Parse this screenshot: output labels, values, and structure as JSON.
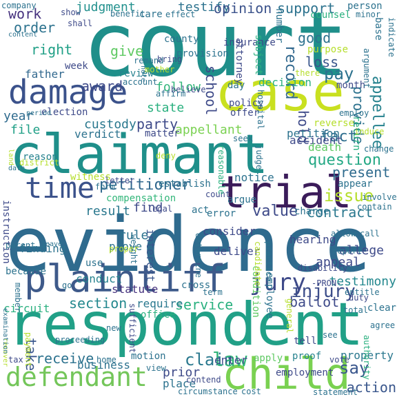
{
  "words": [
    {
      "text": "court",
      "color": "#1f8f8a"
    },
    {
      "text": "evidence",
      "color": "#2f6b8e"
    },
    {
      "text": "respondent",
      "color": "#21a087"
    },
    {
      "text": "claimant",
      "color": "#1f8f8a"
    },
    {
      "text": "case",
      "color": "#c9e020"
    },
    {
      "text": "plaintiff",
      "color": "#3e5a8a"
    },
    {
      "text": "damage",
      "color": "#3b528b"
    },
    {
      "text": "child",
      "color": "#7ad151"
    },
    {
      "text": "trial",
      "color": "#3b1c5a"
    },
    {
      "text": "defendant",
      "color": "#74c65a"
    },
    {
      "text": "time",
      "color": "#3b528b"
    },
    {
      "text": "jury",
      "color": "#3e4a89"
    },
    {
      "text": "injury",
      "color": "#3d4e8a"
    },
    {
      "text": "petitioner",
      "color": "#31688e"
    },
    {
      "text": "custody",
      "color": "#2a788e"
    },
    {
      "text": "record",
      "color": "#31688e"
    },
    {
      "text": "school",
      "color": "#3e4a89"
    },
    {
      "text": "appellee",
      "color": "#26828e"
    },
    {
      "text": "fact",
      "color": "#2e6e8e"
    },
    {
      "text": "question",
      "color": "#23a884"
    },
    {
      "text": "claim",
      "color": "#2a788e"
    },
    {
      "text": "say",
      "color": "#39568c"
    },
    {
      "text": "law",
      "color": "#32b67a"
    },
    {
      "text": "award",
      "color": "#3e4a89"
    },
    {
      "text": "right",
      "color": "#21a087"
    },
    {
      "text": "order",
      "color": "#2c728e"
    },
    {
      "text": "work",
      "color": "#46327e"
    },
    {
      "text": "judgment",
      "color": "#21908d"
    },
    {
      "text": "testify",
      "color": "#2c728e"
    },
    {
      "text": "opinion",
      "color": "#3b528b"
    },
    {
      "text": "support",
      "color": "#2c728e"
    },
    {
      "text": "give",
      "color": "#5ec962"
    },
    {
      "text": "father",
      "color": "#31688e"
    },
    {
      "text": "state",
      "color": "#2ab07f"
    },
    {
      "text": "party",
      "color": "#3e4a89"
    },
    {
      "text": "year",
      "color": "#2f6b8e"
    },
    {
      "text": "file",
      "color": "#21a087"
    },
    {
      "text": "pay",
      "color": "#2c728e"
    },
    {
      "text": "good",
      "color": "#2c728e"
    },
    {
      "text": "loss",
      "color": "#39568c"
    },
    {
      "text": "decision",
      "color": "#2ab07f"
    },
    {
      "text": "provide",
      "color": "#2c728e"
    },
    {
      "text": "hold",
      "color": "#3e4a89"
    },
    {
      "text": "present",
      "color": "#2f6b8e"
    },
    {
      "text": "issue",
      "color": "#b5de2b"
    },
    {
      "text": "contract",
      "color": "#2a788e"
    },
    {
      "text": "value",
      "color": "#3e4a89"
    },
    {
      "text": "result",
      "color": "#2a788e"
    },
    {
      "text": "find",
      "color": "#3e4a89"
    },
    {
      "text": "section",
      "color": "#23888e"
    },
    {
      "text": "service",
      "color": "#2ab07f"
    },
    {
      "text": "ballot",
      "color": "#3e4a89"
    },
    {
      "text": "testimony",
      "color": "#23888e"
    },
    {
      "text": "receive",
      "color": "#2c728e"
    },
    {
      "text": "take",
      "color": "#39568c"
    },
    {
      "text": "action",
      "color": "#39568c"
    },
    {
      "text": "property",
      "color": "#2a788e"
    },
    {
      "text": "appellant",
      "color": "#7ad151"
    },
    {
      "text": "follow",
      "color": "#32b67a"
    },
    {
      "text": "review",
      "color": "#26828e"
    },
    {
      "text": "rule",
      "color": "#2c728e"
    },
    {
      "text": "prove",
      "color": "#2c728e"
    },
    {
      "text": "interest",
      "color": "#39568c"
    },
    {
      "text": "statute",
      "color": "#46327e"
    },
    {
      "text": "appeal",
      "color": "#3e4a89"
    },
    {
      "text": "allege",
      "color": "#3e4a89"
    },
    {
      "text": "conduct",
      "color": "#26828e"
    },
    {
      "text": "instruction",
      "color": "#3e4a89"
    },
    {
      "text": "finding",
      "color": "#2c728e"
    },
    {
      "text": "consider",
      "color": "#3e4a89"
    },
    {
      "text": "notice",
      "color": "#2c728e"
    },
    {
      "text": "deliver",
      "color": "#3e4a89"
    },
    {
      "text": "employee",
      "color": "#2c728e"
    },
    {
      "text": "condition",
      "color": "#5ec962"
    },
    {
      "text": "error",
      "color": "#2c728e"
    },
    {
      "text": "charge",
      "color": "#2c728e"
    },
    {
      "text": "witness",
      "color": "#b5de2b"
    },
    {
      "text": "compensation",
      "color": "#32b67a"
    },
    {
      "text": "verdict",
      "color": "#2c728e"
    },
    {
      "text": "matter",
      "color": "#3e4a89"
    },
    {
      "text": "election",
      "color": "#3e4a89"
    },
    {
      "text": "accident",
      "color": "#3e4a89"
    },
    {
      "text": "petition",
      "color": "#2c728e"
    },
    {
      "text": "death",
      "color": "#5ec962"
    },
    {
      "text": "argue",
      "color": "#2c728e"
    },
    {
      "text": "reason",
      "color": "#26828e"
    },
    {
      "text": "hearing",
      "color": "#3e4a89"
    },
    {
      "text": "require",
      "color": "#2a788e"
    },
    {
      "text": "office",
      "color": "#2ab07f"
    },
    {
      "text": "motion",
      "color": "#2c728e"
    },
    {
      "text": "business",
      "color": "#2c728e"
    },
    {
      "text": "prior",
      "color": "#3e4a89"
    },
    {
      "text": "place",
      "color": "#2c728e"
    },
    {
      "text": "enter",
      "color": "#3e4a89"
    },
    {
      "text": "apply",
      "color": "#5ec962"
    },
    {
      "text": "proof",
      "color": "#26828e"
    },
    {
      "text": "circuit",
      "color": "#2ab07f"
    },
    {
      "text": "because",
      "color": "#2c728e"
    },
    {
      "text": "use",
      "color": "#2c728e"
    },
    {
      "text": "cross",
      "color": "#2c728e"
    },
    {
      "text": "week",
      "color": "#3e4a89"
    },
    {
      "text": "mother",
      "color": "#b5de2b"
    },
    {
      "text": "county",
      "color": "#2c728e"
    },
    {
      "text": "provision",
      "color": "#2c728e"
    },
    {
      "text": "insurance",
      "color": "#3e4a89"
    },
    {
      "text": "attorney",
      "color": "#3e4a89"
    },
    {
      "text": "subject",
      "color": "#2ab07f"
    },
    {
      "text": "counsel",
      "color": "#2ab07f"
    },
    {
      "text": "purpose",
      "color": "#b5de2b"
    },
    {
      "text": "reverse",
      "color": "#b5de2b"
    },
    {
      "text": "return",
      "color": "#2ab07f"
    },
    {
      "text": "month",
      "color": "#3e4a89"
    },
    {
      "text": "policy",
      "color": "#3e4a89"
    },
    {
      "text": "offer",
      "color": "#3e4a89"
    },
    {
      "text": "day",
      "color": "#2c728e"
    },
    {
      "text": "believe",
      "color": "#3e4a89"
    },
    {
      "text": "affirm",
      "color": "#2c728e"
    },
    {
      "text": "seek",
      "color": "#2c728e"
    },
    {
      "text": "establish",
      "color": "#2c728e"
    },
    {
      "text": "letter",
      "color": "#3e4a89"
    },
    {
      "text": "deny",
      "color": "#b5de2b"
    },
    {
      "text": "form",
      "color": "#2c728e"
    },
    {
      "text": "legal",
      "color": "#3e4a89"
    },
    {
      "text": "count",
      "color": "#3e4a89"
    },
    {
      "text": "act",
      "color": "#2c728e"
    },
    {
      "text": "reasonable",
      "color": "#2ab07f"
    },
    {
      "text": "judge",
      "color": "#2c728e"
    },
    {
      "text": "appear",
      "color": "#2c728e"
    },
    {
      "text": "involve",
      "color": "#2c728e"
    },
    {
      "text": "contain",
      "color": "#2c728e"
    },
    {
      "text": "change",
      "color": "#2c728e"
    },
    {
      "text": "induce",
      "color": "#b5de2b"
    },
    {
      "text": "employ",
      "color": "#2c728e"
    },
    {
      "text": "practice",
      "color": "#2c728e"
    },
    {
      "text": "candidate",
      "color": "#b5de2b"
    },
    {
      "text": "allow",
      "color": "#2c728e"
    },
    {
      "text": "call",
      "color": "#2c728e"
    },
    {
      "text": "report",
      "color": "#2c728e"
    },
    {
      "text": "disability",
      "color": "#3e4a89"
    },
    {
      "text": "-PRON-",
      "color": "#3e4a89"
    },
    {
      "text": "entitle",
      "color": "#2c728e"
    },
    {
      "text": "duty",
      "color": "#3e4a89"
    },
    {
      "text": "clear",
      "color": "#2c728e"
    },
    {
      "text": "agree",
      "color": "#2c728e"
    },
    {
      "text": "total",
      "color": "#2c728e"
    },
    {
      "text": "general",
      "color": "#b5de2b"
    },
    {
      "text": "term",
      "color": "#2c728e"
    },
    {
      "text": "see",
      "color": "#2c728e"
    },
    {
      "text": "tell",
      "color": "#3e4a89"
    },
    {
      "text": "vote",
      "color": "#3e4a89"
    },
    {
      "text": "authority",
      "color": "#2ab07f"
    },
    {
      "text": "employment",
      "color": "#3e4a89"
    },
    {
      "text": "cost",
      "color": "#2c728e"
    },
    {
      "text": "circumstance",
      "color": "#2c728e"
    },
    {
      "text": "statement",
      "color": "#2c728e"
    },
    {
      "text": "contend",
      "color": "#3e4a89"
    },
    {
      "text": "view",
      "color": "#2c728e"
    },
    {
      "text": "sufficient",
      "color": "#3e4a89"
    },
    {
      "text": "home",
      "color": "#2c728e"
    },
    {
      "text": "proceeding",
      "color": "#2c728e"
    },
    {
      "text": "new",
      "color": "#2c728e"
    },
    {
      "text": "payment",
      "color": "#b5de2b"
    },
    {
      "text": "tax",
      "color": "#3e4a89"
    },
    {
      "text": "recover",
      "color": "#b5de2b"
    },
    {
      "text": "examination",
      "color": "#2c728e"
    },
    {
      "text": "member",
      "color": "#2c728e"
    },
    {
      "text": "go",
      "color": "#2c728e"
    },
    {
      "text": "parent",
      "color": "#2c728e"
    },
    {
      "text": "leave",
      "color": "#2c728e"
    },
    {
      "text": "remand",
      "color": "#2c728e"
    },
    {
      "text": "bring",
      "color": "#3e4a89"
    },
    {
      "text": "note",
      "color": "#2c728e"
    },
    {
      "text": "account",
      "color": "#2c728e"
    },
    {
      "text": "period",
      "color": "#2c728e"
    },
    {
      "text": "land",
      "color": "#b5de2b"
    },
    {
      "text": "date",
      "color": "#2c728e"
    },
    {
      "text": "district",
      "color": "#b5de2b"
    },
    {
      "text": "company",
      "color": "#2c728e"
    },
    {
      "text": "content",
      "color": "#2c728e"
    },
    {
      "text": "show",
      "color": "#3e4a89"
    },
    {
      "text": "shall",
      "color": "#3e4a89"
    },
    {
      "text": "benefit",
      "color": "#2c728e"
    },
    {
      "text": "care",
      "color": "#2c728e"
    },
    {
      "text": "effect",
      "color": "#2c728e"
    },
    {
      "text": "number",
      "color": "#2c728e"
    },
    {
      "text": "hospital",
      "color": "#2c728e"
    },
    {
      "text": "person",
      "color": "#2c728e"
    },
    {
      "text": "minor",
      "color": "#2c728e"
    },
    {
      "text": "indicate",
      "color": "#2c728e"
    },
    {
      "text": "base",
      "color": "#2c728e"
    },
    {
      "text": "argument",
      "color": "#2c728e"
    },
    {
      "text": "weight",
      "color": "#2c728e"
    },
    {
      "text": "determine",
      "color": "#2c728e"
    },
    {
      "text": "proper",
      "color": "#b5de2b"
    },
    {
      "text": "there",
      "color": "#b5de2b"
    }
  ]
}
